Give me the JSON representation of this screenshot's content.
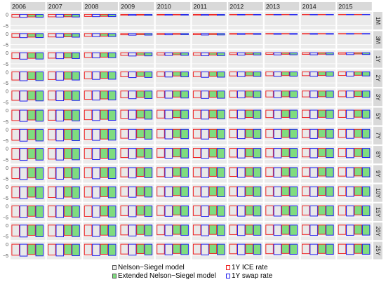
{
  "chart_data": {
    "type": "bar",
    "years": [
      "2006",
      "2007",
      "2008",
      "2009",
      "2010",
      "2011",
      "2012",
      "2013",
      "2014",
      "2015"
    ],
    "maturities": [
      "1M",
      "3M",
      "1Y",
      "2Y",
      "3Y",
      "5Y",
      "7Y",
      "8Y",
      "9Y",
      "10Y",
      "15Y",
      "20Y",
      "25Y"
    ],
    "y_ticks": [
      "0",
      "−5"
    ],
    "y_tick_values": [
      0,
      -5
    ],
    "ylim": [
      -6.5,
      0.8
    ],
    "legend": [
      {
        "label": "Nelson−Siegel model",
        "fill": "#e9e9e9",
        "stroke": "#555555",
        "kind": "fill"
      },
      {
        "label": "Extended Nelson−Siegel model",
        "fill": "#7fdc7f",
        "stroke": "#555555",
        "kind": "fill"
      },
      {
        "label": "1Y ICE rate",
        "fill": "none",
        "stroke": "#ee2222",
        "kind": "outline"
      },
      {
        "label": "1Y swap rate",
        "fill": "none",
        "stroke": "#2222ee",
        "kind": "outline"
      }
    ],
    "year_base": {
      "2006": [
        -4.9,
        -5.3,
        -4.6,
        -5.2
      ],
      "2007": [
        -4.4,
        -4.8,
        -4.2,
        -4.7
      ],
      "2008": [
        -3.6,
        -4.0,
        -3.4,
        -3.9
      ],
      "2009": [
        -1.6,
        -2.1,
        -1.4,
        -2.0
      ],
      "2010": [
        -1.2,
        -1.6,
        -1.0,
        -1.5
      ],
      "2011": [
        -1.5,
        -1.9,
        -1.3,
        -1.8
      ],
      "2012": [
        -0.8,
        -1.2,
        -0.7,
        -1.1
      ],
      "2013": [
        -0.6,
        -1.0,
        -0.5,
        -0.9
      ],
      "2014": [
        -0.5,
        -0.9,
        -0.4,
        -0.8
      ],
      "2015": [
        -0.3,
        -0.7,
        -0.2,
        -0.6
      ]
    },
    "maturity_factor": {
      "1M": 0.25,
      "3M": 0.35,
      "1Y": 0.55,
      "2Y": 0.75,
      "3Y": 0.85,
      "5Y": 0.95,
      "7Y": 1.0,
      "8Y": 1.0,
      "9Y": 1.0,
      "10Y": 1.0,
      "15Y": 1.0,
      "20Y": 1.0,
      "25Y": 1.0
    },
    "maturity_offset": {
      "1M": 0.0,
      "3M": 0.0,
      "1Y": -0.5,
      "2Y": -1.5,
      "3Y": -2.5,
      "5Y": -3.2,
      "7Y": -3.6,
      "8Y": -3.7,
      "9Y": -3.8,
      "10Y": -3.9,
      "15Y": -4.1,
      "20Y": -4.2,
      "25Y": -4.2
    }
  }
}
